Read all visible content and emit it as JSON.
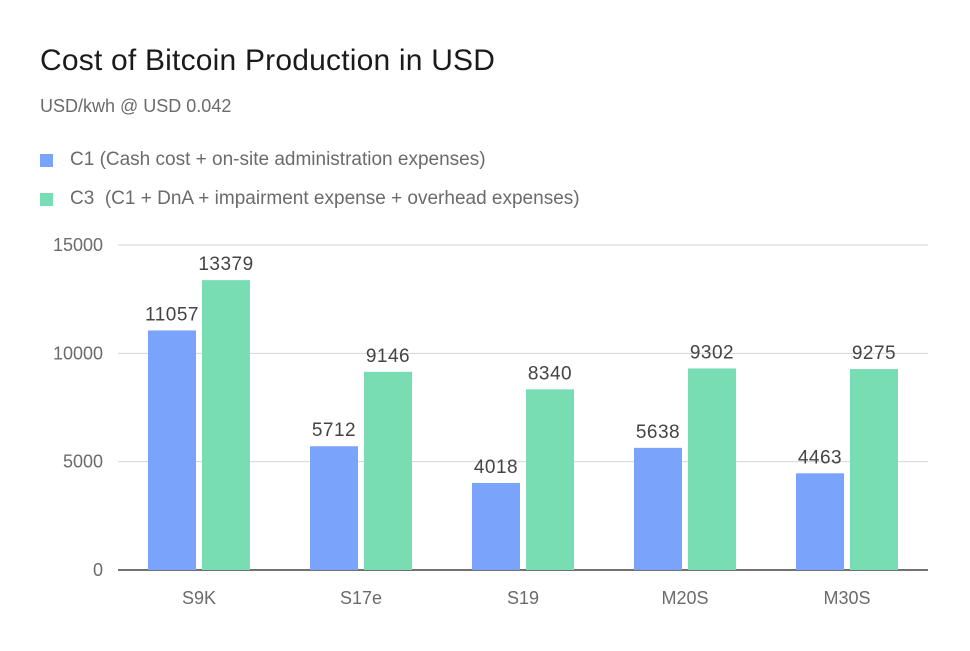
{
  "chart_data": {
    "type": "bar",
    "title": "Cost of Bitcoin Production in USD",
    "subtitle": "USD/kwh @ USD 0.042",
    "xlabel": "",
    "ylabel": "",
    "categories": [
      "S9K",
      "S17e",
      "S19",
      "M20S",
      "M30S"
    ],
    "series": [
      {
        "name": "C1 (Cash cost + on-site administration expenses)",
        "color": "#7aa3fb",
        "values": [
          11057,
          5712,
          4018,
          5638,
          4463
        ]
      },
      {
        "name": "C3  (C1 + DnA + impairment expense + overhead expenses)",
        "color": "#79ddb4",
        "values": [
          13379,
          9146,
          8340,
          9302,
          9275
        ]
      }
    ],
    "ylim": [
      0,
      15000
    ],
    "yticks": [
      0,
      5000,
      10000,
      15000
    ],
    "grid": true,
    "legend_position": "top-left",
    "data_labels": true
  }
}
